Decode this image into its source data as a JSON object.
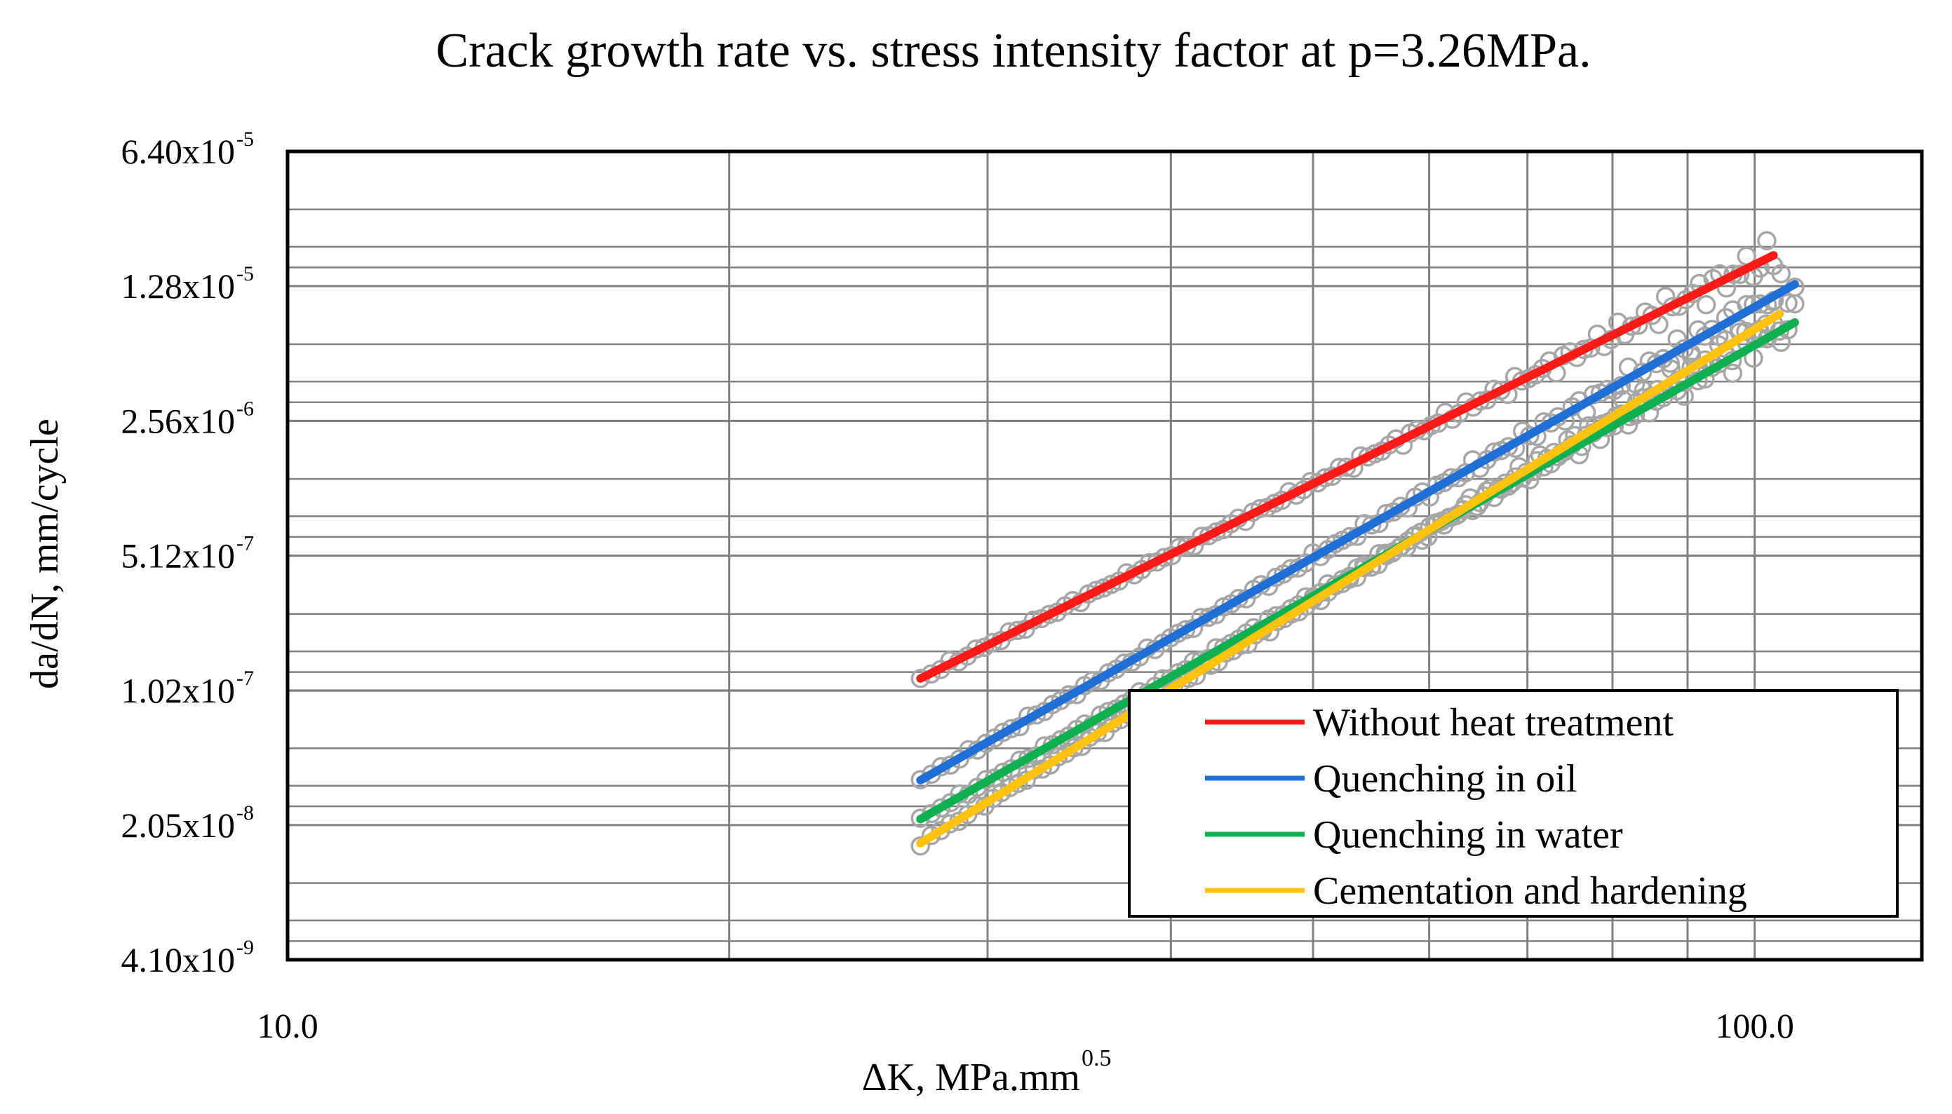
{
  "chart_data": {
    "type": "line",
    "title": "Crack growth rate vs. stress intensity factor at p=3.26MPa.",
    "xlabel": "ΔK, MPa.mm",
    "xlabel_sup": "0.5",
    "ylabel": "da/dN, mm/cycle",
    "xscale": "log",
    "yscale": "log",
    "xlim": [
      10.0,
      130.0
    ],
    "ylim": [
      4.1e-09,
      6.4e-05
    ],
    "x_tick_labels": [
      {
        "value": 10.0,
        "label": "10.0"
      },
      {
        "value": 100.0,
        "label": "100.0"
      }
    ],
    "y_tick_labels": [
      {
        "value": 6.4e-05,
        "mantissa": "6.40x10",
        "exp": "-5"
      },
      {
        "value": 1.28e-05,
        "mantissa": "1.28x10",
        "exp": "-5"
      },
      {
        "value": 2.56e-06,
        "mantissa": "2.56x10",
        "exp": "-6"
      },
      {
        "value": 5.12e-07,
        "mantissa": "5.12x10",
        "exp": "-7"
      },
      {
        "value": 1.02e-07,
        "mantissa": "1.02x10",
        "exp": "-7"
      },
      {
        "value": 2.05e-08,
        "mantissa": "2.05x10",
        "exp": "-8"
      },
      {
        "value": 4.1e-09,
        "mantissa": "4.10x10",
        "exp": "-9"
      }
    ],
    "x_minor_gridlines": [
      20,
      30,
      40,
      50,
      60,
      70,
      80,
      90,
      100
    ],
    "grid": true,
    "legend_position": "bottom-right",
    "series": [
      {
        "name": "Without heat treatment",
        "color": "#ff1a1a",
        "x": [
          27.0,
          103.0
        ],
        "y": [
          1.18e-07,
          1.85e-05
        ],
        "n_points": 118
      },
      {
        "name": "Quenching in oil",
        "color": "#1f6fd6",
        "x": [
          27.0,
          106.5
        ],
        "y": [
          3.5e-08,
          1.31e-05
        ],
        "n_points": 118
      },
      {
        "name": "Quenching in water",
        "color": "#0fb04f",
        "x": [
          27.0,
          106.5
        ],
        "y": [
          2.2e-08,
          8.3e-06
        ],
        "n_points": 118
      },
      {
        "name": "Cementation and hardening",
        "color": "#ffc20e",
        "x": [
          27.0,
          104.0
        ],
        "y": [
          1.65e-08,
          9.2e-06
        ],
        "n_points": 118
      }
    ],
    "marker_color": "#a6a6a6"
  }
}
